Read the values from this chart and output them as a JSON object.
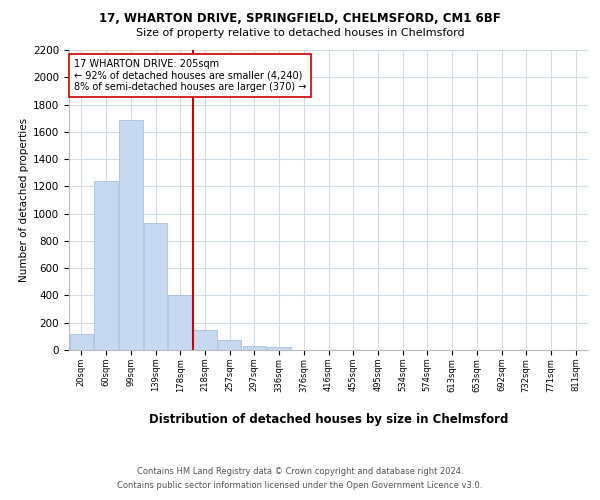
{
  "title1": "17, WHARTON DRIVE, SPRINGFIELD, CHELMSFORD, CM1 6BF",
  "title2": "Size of property relative to detached houses in Chelmsford",
  "xlabel": "Distribution of detached houses by size in Chelmsford",
  "ylabel": "Number of detached properties",
  "bar_labels": [
    "20sqm",
    "60sqm",
    "99sqm",
    "139sqm",
    "178sqm",
    "218sqm",
    "257sqm",
    "297sqm",
    "336sqm",
    "376sqm",
    "416sqm",
    "455sqm",
    "495sqm",
    "534sqm",
    "574sqm",
    "613sqm",
    "653sqm",
    "692sqm",
    "732sqm",
    "771sqm",
    "811sqm"
  ],
  "bar_values": [
    120,
    1240,
    1690,
    930,
    400,
    150,
    70,
    30,
    20,
    0,
    0,
    0,
    0,
    0,
    0,
    0,
    0,
    0,
    0,
    0,
    0
  ],
  "bar_color": "#c6d9f0",
  "bar_edge_color": "#a0b8d8",
  "vline_color": "#cc0000",
  "vline_pos": 4.5,
  "ylim": [
    0,
    2200
  ],
  "yticks": [
    0,
    200,
    400,
    600,
    800,
    1000,
    1200,
    1400,
    1600,
    1800,
    2000,
    2200
  ],
  "annotation_text": "17 WHARTON DRIVE: 205sqm\n← 92% of detached houses are smaller (4,240)\n8% of semi-detached houses are larger (370) →",
  "annotation_box_color": "#ffffff",
  "annotation_box_edge": "#cc0000",
  "footer1": "Contains HM Land Registry data © Crown copyright and database right 2024.",
  "footer2": "Contains public sector information licensed under the Open Government Licence v3.0.",
  "bg_color": "#ffffff",
  "grid_color": "#d0dce8",
  "title1_fontsize": 8.5,
  "title2_fontsize": 8.0,
  "ylabel_fontsize": 7.5,
  "xlabel_fontsize": 8.5,
  "ytick_fontsize": 7.5,
  "xtick_fontsize": 6.0,
  "ann_fontsize": 7.0,
  "footer_fontsize": 6.0
}
